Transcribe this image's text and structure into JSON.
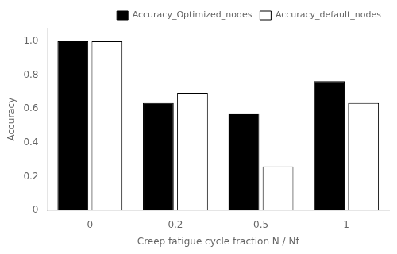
{
  "chart_data": {
    "type": "bar",
    "categories": [
      "0",
      "0.2",
      "0.5",
      "1"
    ],
    "series": [
      {
        "name": "Accuracy_Optimized_nodes",
        "color": "#000000",
        "values": [
          1.0,
          0.635,
          0.575,
          0.765
        ]
      },
      {
        "name": "Accuracy_default_nodes",
        "color": "#ffffff",
        "values": [
          1.0,
          0.695,
          0.26,
          0.635
        ]
      }
    ],
    "xlabel": "Creep fatigue cycle fraction N / Nf",
    "ylabel": "Accuracy",
    "ylim": [
      0,
      1.08
    ],
    "yticks": [
      0,
      0.2,
      0.4,
      0.6,
      0.8,
      {
        "value": 1.0,
        "label": "1.0"
      }
    ],
    "grid": false,
    "legend": "upper right"
  }
}
